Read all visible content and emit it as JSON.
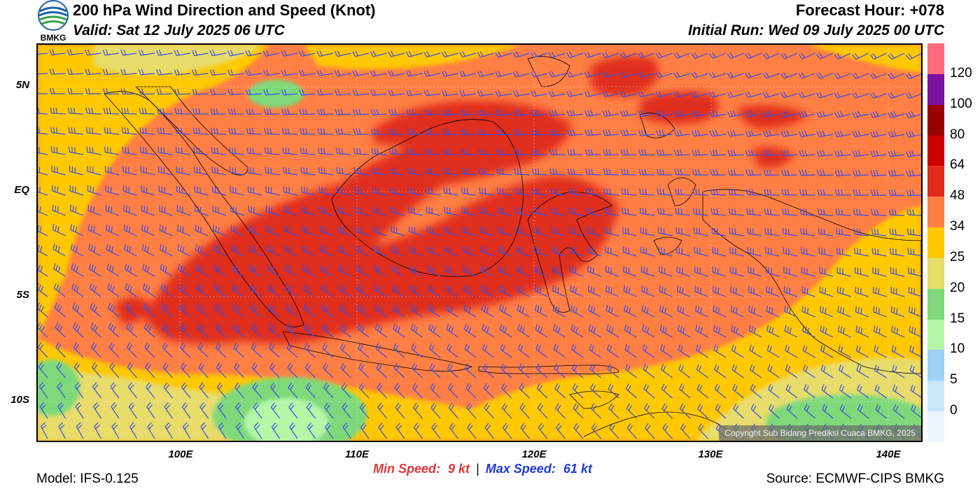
{
  "header": {
    "title": "200 hPa Wind Direction and Speed (Knot)",
    "valid": "Valid: Sat 12 July 2025 06 UTC",
    "forecast_hour": "Forecast Hour: +078",
    "initial_run": "Initial Run: Wed 09 July 2025 00 UTC",
    "logo_text": "BMKG"
  },
  "axes": {
    "lat_labels": [
      "5N",
      "EQ",
      "5S",
      "10S"
    ],
    "lon_labels": [
      "100E",
      "110E",
      "120E",
      "130E",
      "140E"
    ]
  },
  "colorbar": {
    "labels": [
      "120",
      "100",
      "80",
      "64",
      "48",
      "34",
      "25",
      "20",
      "15",
      "10",
      "5",
      "0"
    ],
    "colors": [
      "#ff6b7d",
      "#7a0fa0",
      "#990000",
      "#cc0000",
      "#e02d1b",
      "#ff7f45",
      "#ffc800",
      "#e8dc6a",
      "#7fd97a",
      "#b4f7a7",
      "#9ed2f7",
      "#c9e6fb",
      "#eaf4fd"
    ]
  },
  "stats": {
    "min_label": "Min Speed:",
    "min_value": "9 kt",
    "separator": "|",
    "max_label": "Max Speed:",
    "max_value": "61 kt"
  },
  "footer": {
    "model": "Model: IFS-0.125",
    "source": "Source: ECMWF-CIPS BMKG",
    "copyright": "Copyright Sub Bidang Prediksi Cuaca BMKG, 2025"
  },
  "colors": {
    "barb": "#3b4fe0",
    "coast": "#000000"
  }
}
